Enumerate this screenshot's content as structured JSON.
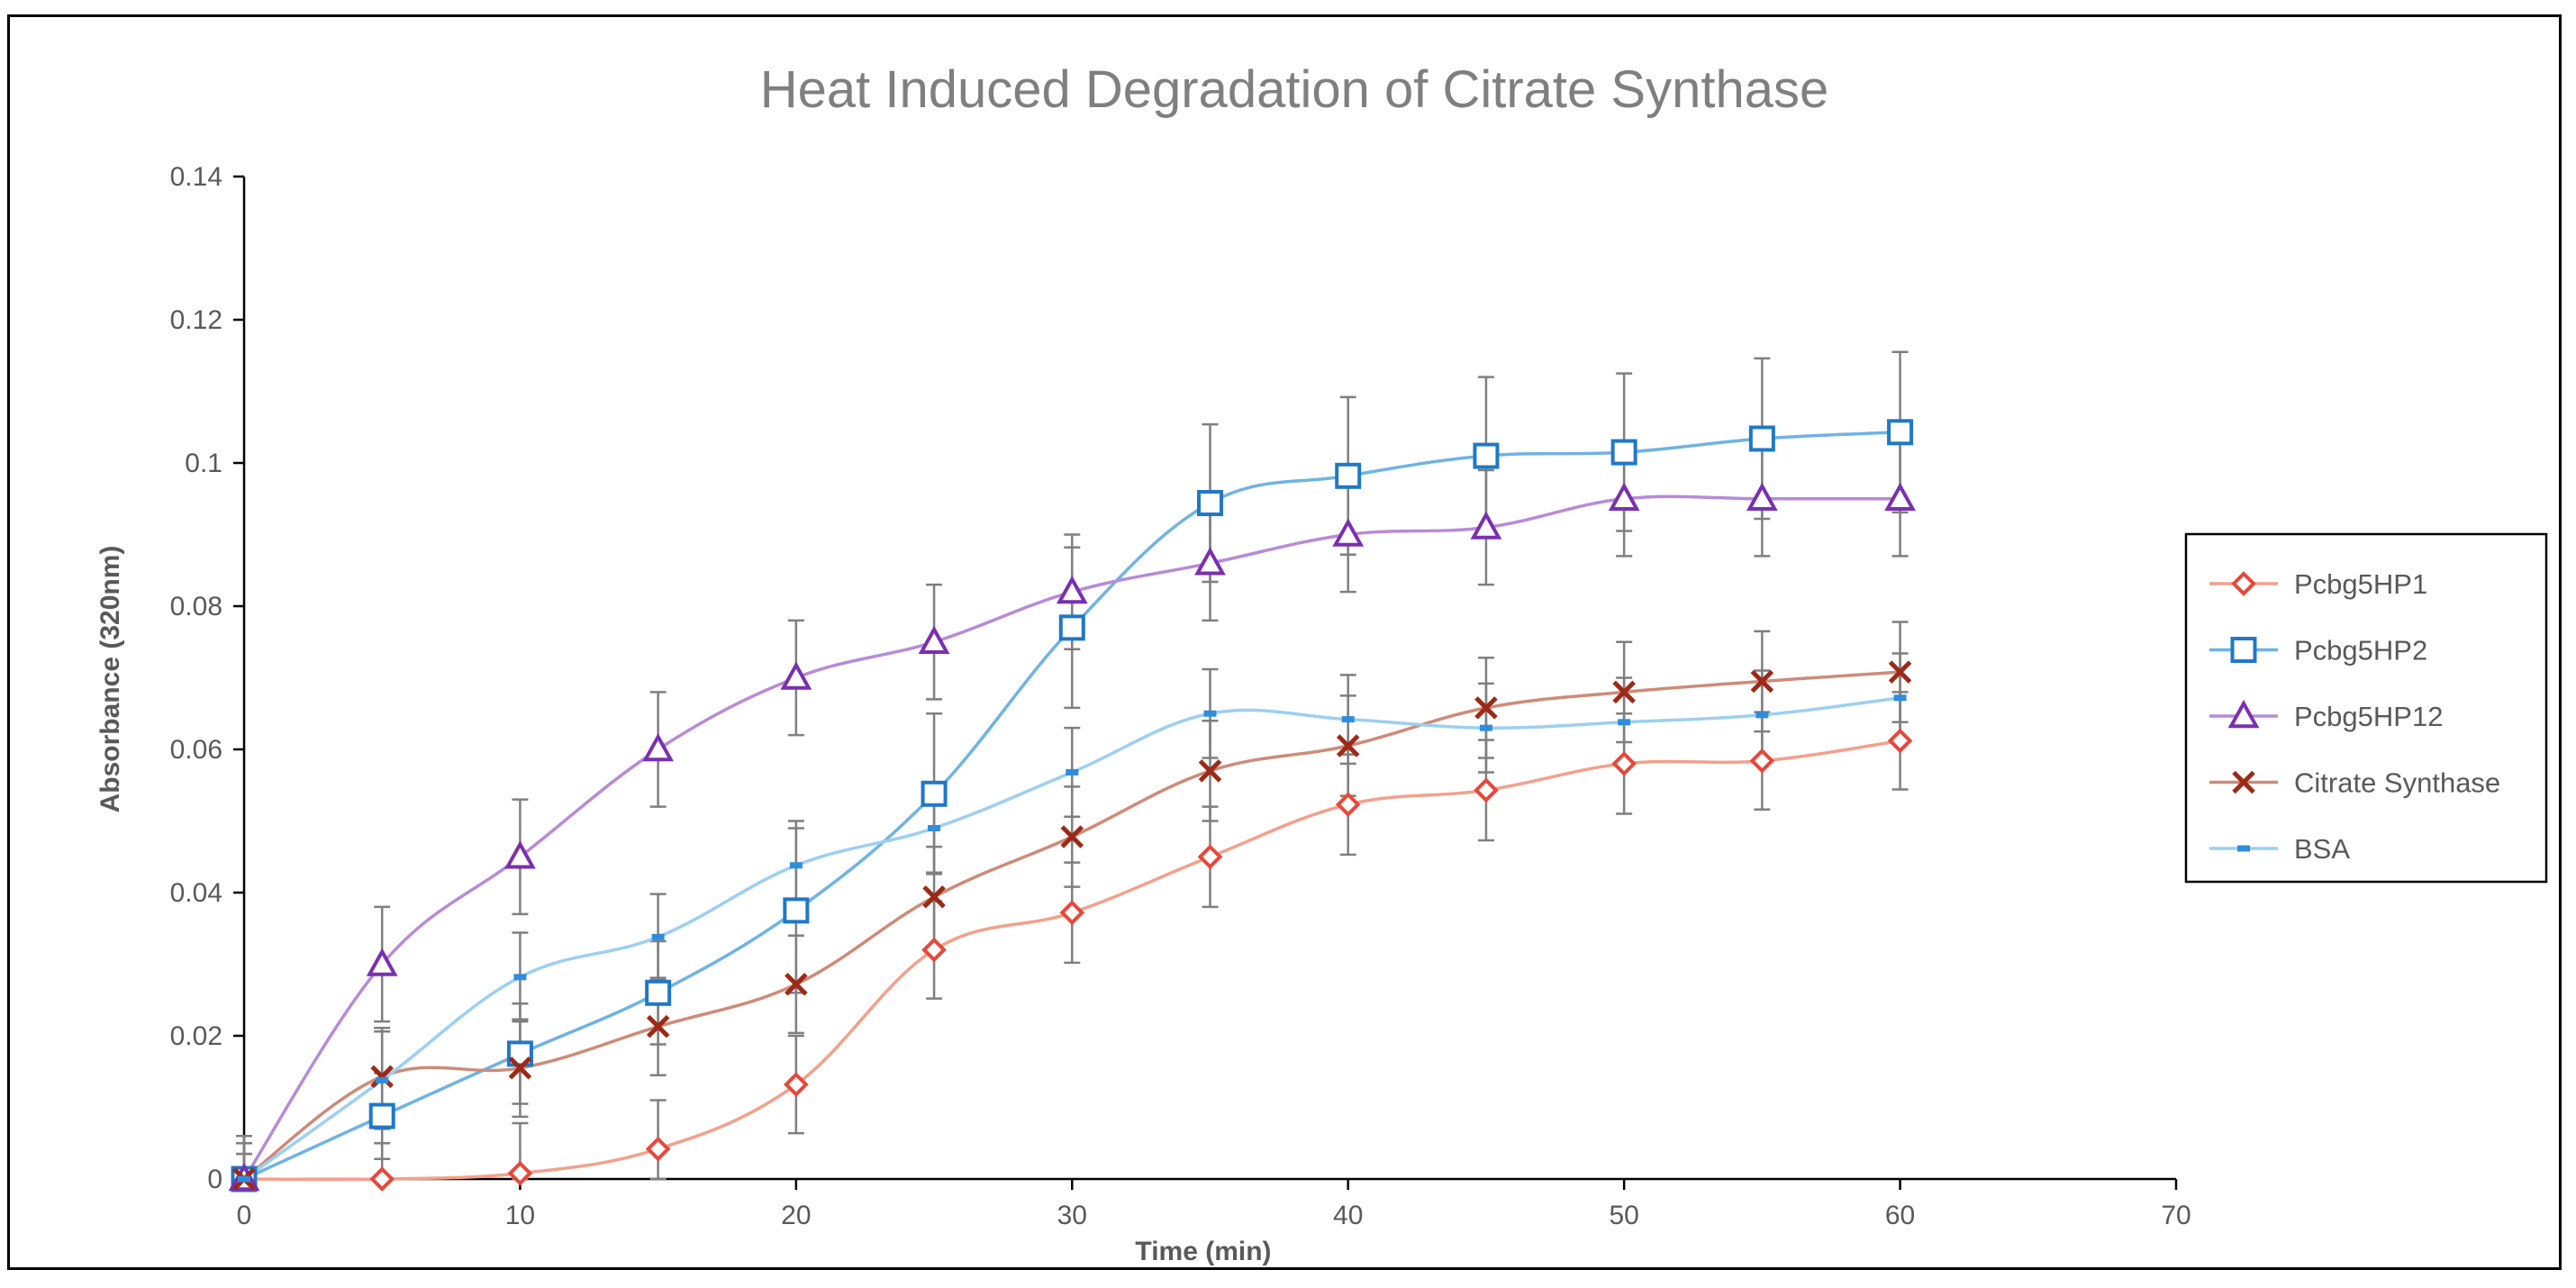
{
  "chart_data": {
    "type": "line",
    "title": "Heat Induced Degradation of Citrate Synthase",
    "xlabel": "Time (min)",
    "ylabel": "Absorbance (320nm)",
    "xlim": [
      0,
      70
    ],
    "ylim": [
      0,
      0.14
    ],
    "x_ticks": [
      0,
      10,
      20,
      30,
      40,
      50,
      60,
      70
    ],
    "y_ticks": [
      0,
      0.02,
      0.04,
      0.06,
      0.08,
      0.1,
      0.12,
      0.14
    ],
    "x_tick_labels": [
      "0",
      "10",
      "20",
      "30",
      "40",
      "50",
      "60",
      "70"
    ],
    "y_tick_labels": [
      "0",
      "0.02",
      "0.04",
      "0.06",
      "0.08",
      "0.1",
      "0.12",
      "0.14"
    ],
    "grid": false,
    "legend_position": "right",
    "x": [
      0,
      5,
      10,
      15,
      20,
      25,
      30,
      35,
      40,
      45,
      50,
      55,
      60
    ],
    "series": [
      {
        "name": "Pcbg5HP1",
        "marker": "diamond",
        "line_color": "#f4a08c",
        "marker_color": "#e8473a",
        "values": [
          0,
          0,
          0.0008,
          0.0042,
          0.0132,
          0.032,
          0.0372,
          0.045,
          0.0523,
          0.0543,
          0.058,
          0.0584,
          0.0612
        ],
        "errors": [
          0.005,
          0.005,
          0.007,
          0.0068,
          0.0068,
          0.0068,
          0.007,
          0.007,
          0.007,
          0.007,
          0.007,
          0.0068,
          0.0068
        ]
      },
      {
        "name": "Pcbg5HP2",
        "marker": "square",
        "line_color": "#6fb3e4",
        "marker_color": "#1f78c8",
        "values": [
          0,
          0.0088,
          0.0175,
          0.026,
          0.0375,
          0.0538,
          0.077,
          0.0944,
          0.0982,
          0.101,
          0.1015,
          0.1034,
          0.1043
        ],
        "errors": [
          0.006,
          0.006,
          0.007,
          0.0072,
          0.0115,
          0.0112,
          0.0112,
          0.011,
          0.011,
          0.011,
          0.011,
          0.0112,
          0.0112
        ]
      },
      {
        "name": "Pcbg5HP12",
        "marker": "triangle",
        "line_color": "#b88ad8",
        "marker_color": "#7a2fb0",
        "values": [
          0,
          0.03,
          0.045,
          0.06,
          0.07,
          0.075,
          0.082,
          0.086,
          0.09,
          0.091,
          0.095,
          0.095,
          0.095
        ],
        "errors": [
          0.005,
          0.008,
          0.008,
          0.008,
          0.008,
          0.008,
          0.008,
          0.008,
          0.008,
          0.008,
          0.008,
          0.008,
          0.008
        ]
      },
      {
        "name": "Citrate Synthase",
        "marker": "x",
        "line_color": "#cf8a78",
        "marker_color": "#9c2a17",
        "values": [
          0,
          0.0143,
          0.0155,
          0.0213,
          0.0272,
          0.0394,
          0.0478,
          0.057,
          0.0605,
          0.0658,
          0.068,
          0.0695,
          0.0708
        ],
        "errors": [
          0.0035,
          0.0068,
          0.0068,
          0.0068,
          0.0068,
          0.007,
          0.007,
          0.007,
          0.007,
          0.007,
          0.007,
          0.007,
          0.007
        ]
      },
      {
        "name": "BSA",
        "marker": "dash",
        "line_color": "#9ccff2",
        "marker_color": "#2e8ddd",
        "values": [
          0,
          0.0138,
          0.0282,
          0.0338,
          0.0438,
          0.049,
          0.0568,
          0.065,
          0.0642,
          0.063,
          0.0638,
          0.0648,
          0.0672
        ],
        "errors": [
          0.0035,
          0.0068,
          0.0062,
          0.006,
          0.0062,
          0.0062,
          0.0062,
          0.0062,
          0.0062,
          0.0062,
          0.0062,
          0.0062,
          0.0062
        ]
      }
    ]
  }
}
